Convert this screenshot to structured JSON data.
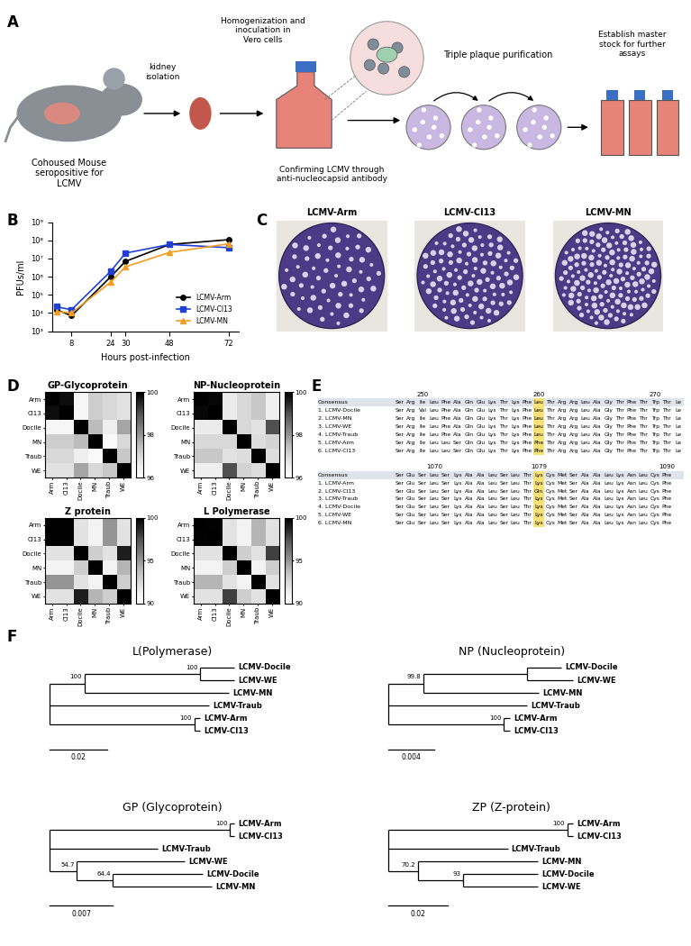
{
  "panel_labels": [
    "A",
    "B",
    "C",
    "D",
    "E",
    "F"
  ],
  "diagram": {
    "steps": [
      "Cohoused Mouse seropositive for LCMV",
      "kidney isolation",
      "Homogenization and inoculation in Vero cells",
      "Confirming LCMV through anti-nucleocapsid antibody",
      "Triple plaque purification",
      "Establish master stock for further assays"
    ]
  },
  "chart_data": [
    {
      "type": "line",
      "xlabel": "Hours post-infection",
      "ylabel": "PFUs/ml",
      "x": [
        2,
        8,
        24,
        30,
        48,
        72
      ],
      "xlim": [
        0,
        76
      ],
      "xticks": [
        8,
        24,
        30,
        48,
        72
      ],
      "log": "y",
      "ylim": [
        1000,
        1000000000
      ],
      "yticks": [
        {
          "value": 1000,
          "label": "10³"
        },
        {
          "value": 10000,
          "label": "10⁴"
        },
        {
          "value": 100000,
          "label": "10⁵"
        },
        {
          "value": 1000000,
          "label": "10⁶"
        },
        {
          "value": 10000000,
          "label": "10⁷"
        },
        {
          "value": 100000000,
          "label": "10⁸"
        },
        {
          "value": 1000000000,
          "label": "10⁹"
        }
      ],
      "legend": "lower right",
      "series": [
        {
          "name": "LCMV-Arm",
          "color": "#000000",
          "marker": "o",
          "values": [
            15000,
            7000,
            1000000,
            7000000,
            60000000,
            110000000
          ]
        },
        {
          "name": "LCMV-Cl13",
          "color": "#1f3fd6",
          "marker": "s",
          "values": [
            22000,
            15000,
            2000000,
            20000000,
            60000000,
            40000000
          ]
        },
        {
          "name": "LCMV-MN",
          "color": "#f39c1f",
          "marker": "^",
          "values": [
            12000,
            10000,
            500000,
            3500000,
            22000000,
            65000000
          ]
        }
      ]
    },
    {
      "type": "heatmap",
      "title": "GP-Glycoprotein",
      "categories": [
        "Arm",
        "Cl13",
        "Docile",
        "MN",
        "Traub",
        "WE"
      ],
      "cells": [
        [
          100,
          99.8,
          96.3,
          97.2,
          97.0,
          96.8
        ],
        [
          99.8,
          100,
          96.3,
          97.2,
          97.0,
          96.8
        ],
        [
          96.3,
          96.3,
          100,
          97.5,
          96.5,
          97.8
        ],
        [
          97.2,
          97.2,
          97.5,
          100,
          96.2,
          97.0
        ],
        [
          97.0,
          97.0,
          96.5,
          96.2,
          100,
          97.3
        ],
        [
          96.8,
          96.8,
          97.8,
          97.0,
          97.3,
          100
        ]
      ],
      "colorbar": {
        "range": [
          96,
          100
        ],
        "ticks": [
          96,
          98,
          100
        ]
      }
    },
    {
      "type": "heatmap",
      "title": "NP-Nucleoprotein",
      "categories": [
        "Arm",
        "Cl13",
        "Docile",
        "MN",
        "Traub",
        "WE"
      ],
      "cells": [
        [
          100,
          99.9,
          96.6,
          97.0,
          97.3,
          96.5
        ],
        [
          99.9,
          100,
          96.6,
          97.0,
          97.3,
          96.5
        ],
        [
          96.6,
          96.6,
          100,
          97.0,
          96.8,
          99.0
        ],
        [
          97.0,
          97.0,
          97.0,
          100,
          96.9,
          97.1
        ],
        [
          97.3,
          97.3,
          96.8,
          96.9,
          100,
          96.9
        ],
        [
          96.5,
          96.5,
          99.0,
          97.1,
          96.9,
          100
        ]
      ],
      "colorbar": {
        "range": [
          96,
          100
        ],
        "ticks": [
          96,
          98,
          100
        ]
      }
    },
    {
      "type": "heatmap",
      "title": "Z protein",
      "categories": [
        "Arm",
        "Cl13",
        "Docile",
        "MN",
        "Traub",
        "WE"
      ],
      "cells": [
        [
          100,
          100,
          92,
          91,
          95,
          92
        ],
        [
          100,
          100,
          92,
          91,
          95,
          92
        ],
        [
          92,
          92,
          100,
          93,
          92,
          99
        ],
        [
          91,
          91,
          93,
          100,
          91,
          94
        ],
        [
          95,
          95,
          92,
          91,
          100,
          93
        ],
        [
          92,
          92,
          99,
          94,
          93,
          100
        ]
      ],
      "colorbar": {
        "range": [
          90,
          100
        ],
        "ticks": [
          90,
          95,
          100
        ]
      }
    },
    {
      "type": "heatmap",
      "title": "L Polymerase",
      "categories": [
        "Arm",
        "Cl13",
        "Docile",
        "MN",
        "Traub",
        "WE"
      ],
      "cells": [
        [
          100,
          99.9,
          92,
          91,
          94,
          92
        ],
        [
          99.9,
          100,
          92,
          91,
          94,
          92
        ],
        [
          92,
          92,
          100,
          93,
          92,
          98
        ],
        [
          91,
          91,
          93,
          100,
          91,
          93
        ],
        [
          94,
          94,
          92,
          91,
          100,
          92
        ],
        [
          92,
          92,
          98,
          93,
          92,
          100
        ]
      ],
      "colorbar": {
        "range": [
          90,
          100
        ],
        "ticks": [
          90,
          95,
          100
        ]
      }
    }
  ],
  "plaques": {
    "labels": [
      "LCMV-Arm",
      "LCMV-Cl13",
      "LCMV-MN"
    ]
  },
  "alignment": {
    "consensus_label": "Consensus",
    "blocks": [
      {
        "start": 248,
        "ticks": [
          250,
          260,
          270
        ],
        "highlight": 260,
        "consensus": "Ser Arg Ile Leu Phe Ala Gln Glu Lys Thr Lys Phe Leu Thr Arg Arg Leu Ala Gly Thr Phe Thr Trp Thr Le",
        "rows": [
          {
            "label": "1. LCMV-Docile",
            "residues": "Ser Arg Val Leu Phe Ala Gln Glu Lys Thr Lys Phe Leu Thr Arg Arg Leu Ala Gly Thr Phe Thr Trp Thr Le"
          },
          {
            "label": "2. LCMV-MN",
            "residues": "Ser Arg Ile Leu Phe Ala Gln Glu Lys Thr Lys Phe Leu Thr Arg Arg Leu Ala Gly Thr Phe Thr Trp Thr Le"
          },
          {
            "label": "3. LCMV-WE",
            "residues": "Ser Arg Ile Leu Phe Ala Gln Glu Lys Thr Lys Phe Leu Thr Arg Arg Leu Ala Gly Thr Phe Thr Trp Thr Le"
          },
          {
            "label": "4. LCMV-Traub",
            "residues": "Ser Arg Ile Leu Phe Ala Gln Glu Lys Thr Lys Phe Leu Thr Arg Arg Leu Ala Gly Thr Phe Thr Trp Thr Le"
          },
          {
            "label": "5. LCMV-Arm",
            "residues": "Ser Arg Ile Leu Leu Ser Gln Glu Lys Thr Lys Phe Phe Thr Arg Arg Leu Ala Gly Thr Phe Thr Trp Thr Le"
          },
          {
            "label": "6. LCMV-Cl13",
            "residues": "Ser Arg Ile Leu Leu Ser Gln Glu Lys Thr Lys Phe Phe Thr Arg Arg Leu Ala Gly Thr Phe Thr Trp Thr Le"
          }
        ]
      },
      {
        "start": 1067,
        "ticks": [
          1070,
          1079,
          1090
        ],
        "highlight": 1079,
        "consensus": "Ser Glu Ser Leu Ser Lys Ala Ala Leu Ser Leu Thr Lys Cys Met Ser Ala Ala Leu Lys Asn Leu Cys Phe",
        "rows": [
          {
            "label": "1. LCMV-Arm",
            "residues": "Ser Glu Ser Leu Ser Lys Ala Ala Leu Ser Leu Thr Lys Cys Met Ser Ala Ala Leu Lys Asn Leu Cys Phe"
          },
          {
            "label": "2. LCMV-Cl13",
            "residues": "Ser Glu Ser Leu Ser Lys Ala Ala Leu Ser Leu Thr Gln Cys Met Ser Ala Ala Leu Lys Asn Leu Cys Phe"
          },
          {
            "label": "3. LCMV-Traub",
            "residues": "Ser Glu Ser Leu Ser Lys Ala Ala Leu Ser Leu Thr Lys Cys Met Ser Ala Ala Leu Lys Asn Leu Cys Phe"
          },
          {
            "label": "4. LCMV-Docile",
            "residues": "Ser Glu Ser Leu Ser Lys Ala Ala Leu Ser Leu Thr Lys Cys Met Ser Ala Ala Leu Lys Asn Leu Cys Phe"
          },
          {
            "label": "5. LCMV-WE",
            "residues": "Ser Glu Ser Leu Ser Lys Ala Ala Leu Ser Leu Thr Lys Cys Met Ser Ala Ala Leu Lys Asn Leu Cys Phe"
          },
          {
            "label": "6. LCMV-MN",
            "residues": "Ser Glu Ser Leu Ser Lys Ala Ala Leu Ser Leu Thr Lys Cys Met Ser Ala Ala Leu Lys Asn Leu Cys Phe"
          }
        ]
      }
    ]
  },
  "trees": [
    {
      "title": "L(Polymerase)",
      "scale": 0.02,
      "root": {
        "children": [
          {
            "length": 0.012,
            "support": 100,
            "children": [
              {
                "length": 0.04,
                "support": 100,
                "children": [
                  {
                    "name": "LCMV-Docile",
                    "length": 0.012
                  },
                  {
                    "name": "LCMV-WE",
                    "length": 0.012
                  }
                ]
              },
              {
                "name": "LCMV-MN",
                "length": 0.05
              }
            ]
          },
          {
            "name": "LCMV-Traub",
            "length": 0.055
          },
          {
            "length": 0.05,
            "support": 100,
            "children": [
              {
                "name": "LCMV-Arm",
                "length": 0.002
              },
              {
                "name": "LCMV-Cl13",
                "length": 0.002
              }
            ]
          }
        ]
      }
    },
    {
      "title": "NP (Nucleoprotein)",
      "scale": 0.004,
      "root": {
        "children": [
          {
            "length": 0.003,
            "support": 99.8,
            "children": [
              {
                "length": 0.009,
                "children": [
                  {
                    "name": "LCMV-Docile",
                    "length": 0.003
                  },
                  {
                    "name": "LCMV-WE",
                    "length": 0.004
                  }
                ]
              },
              {
                "name": "LCMV-MN",
                "length": 0.01
              }
            ]
          },
          {
            "name": "LCMV-Traub",
            "length": 0.012
          },
          {
            "length": 0.01,
            "support": 100,
            "children": [
              {
                "name": "LCMV-Arm",
                "length": 0.0005
              },
              {
                "name": "LCMV-Cl13",
                "length": 0.0005
              }
            ]
          }
        ]
      }
    },
    {
      "title": "GP (Glycoprotein)",
      "scale": 0.007,
      "root": {
        "children": [
          {
            "length": 0.02,
            "support": 100,
            "children": [
              {
                "name": "LCMV-Arm",
                "length": 0.0005
              },
              {
                "name": "LCMV-Cl13",
                "length": 0.0005
              }
            ]
          },
          {
            "name": "LCMV-Traub",
            "length": 0.012
          },
          {
            "length": 0.003,
            "support": 54.7,
            "children": [
              {
                "name": "LCMV-WE",
                "length": 0.012
              },
              {
                "length": 0.004,
                "support": 64.4,
                "children": [
                  {
                    "name": "LCMV-Docile",
                    "length": 0.01
                  },
                  {
                    "name": "LCMV-MN",
                    "length": 0.011
                  }
                ]
              }
            ]
          }
        ]
      }
    },
    {
      "title": "ZP (Z-protein)",
      "scale": 0.02,
      "root": {
        "children": [
          {
            "length": 0.06,
            "support": 100,
            "children": [
              {
                "name": "LCMV-Arm",
                "length": 0.002
              },
              {
                "name": "LCMV-Cl13",
                "length": 0.002
              }
            ]
          },
          {
            "name": "LCMV-Traub",
            "length": 0.04
          },
          {
            "length": 0.01,
            "support": 70.2,
            "children": [
              {
                "name": "LCMV-MN",
                "length": 0.04
              },
              {
                "length": 0.015,
                "support": 93,
                "children": [
                  {
                    "name": "LCMV-Docile",
                    "length": 0.025
                  },
                  {
                    "name": "LCMV-WE",
                    "length": 0.025
                  }
                ]
              }
            ]
          }
        ]
      }
    }
  ]
}
